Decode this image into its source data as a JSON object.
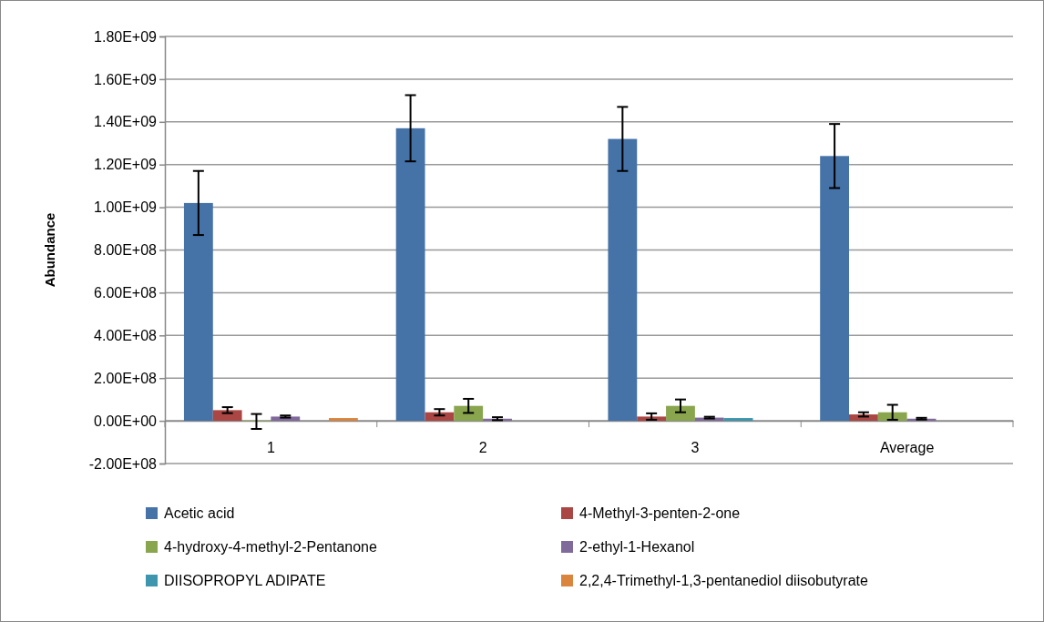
{
  "chart_data": {
    "type": "bar",
    "ylabel": "Abundance",
    "categories": [
      "1",
      "2",
      "3",
      "Average"
    ],
    "series": [
      {
        "name": "Acetic acid",
        "color": "#4572a7",
        "values": [
          1020000000,
          1370000000,
          1320000000,
          1240000000
        ],
        "errors": [
          150000000,
          155000000,
          150000000,
          150000000
        ]
      },
      {
        "name": "4-Methyl-3-penten-2-one",
        "color": "#aa4643",
        "values": [
          50000000,
          40000000,
          20000000,
          30000000
        ],
        "errors": [
          14000000,
          15000000,
          15000000,
          10000000
        ]
      },
      {
        "name": "4-hydroxy-4-methyl-2-Pentanone",
        "color": "#89a54e",
        "values": [
          -3000000,
          70000000,
          70000000,
          40000000
        ],
        "errors": [
          35000000,
          33000000,
          30000000,
          35000000
        ]
      },
      {
        "name": "2-ethyl-1-Hexanol",
        "color": "#80699b",
        "values": [
          20000000,
          10000000,
          15000000,
          10000000
        ],
        "errors": [
          5000000,
          7000000,
          4000000,
          4000000
        ]
      },
      {
        "name": "DIISOPROPYL ADIPATE",
        "color": "#3d96ae",
        "values": [
          0,
          0,
          13000000,
          0
        ],
        "errors": [
          null,
          null,
          null,
          null
        ]
      },
      {
        "name": "2,2,4-Trimethyl-1,3-pentanediol diisobutyrate",
        "color": "#db843d",
        "values": [
          13000000,
          0,
          0,
          0
        ],
        "errors": [
          null,
          null,
          null,
          null
        ]
      }
    ],
    "ylim": [
      -200000000,
      1800000000
    ],
    "yticks": [
      {
        "value": -200000000,
        "label": "-2.00E+08"
      },
      {
        "value": 0,
        "label": "0.00E+00"
      },
      {
        "value": 200000000,
        "label": "2.00E+08"
      },
      {
        "value": 400000000,
        "label": "4.00E+08"
      },
      {
        "value": 600000000,
        "label": "6.00E+08"
      },
      {
        "value": 800000000,
        "label": "8.00E+08"
      },
      {
        "value": 1000000000,
        "label": "1.00E+09"
      },
      {
        "value": 1200000000,
        "label": "1.20E+09"
      },
      {
        "value": 1400000000,
        "label": "1.40E+09"
      },
      {
        "value": 1600000000,
        "label": "1.60E+09"
      },
      {
        "value": 1800000000,
        "label": "1.80E+09"
      }
    ],
    "grid": "y",
    "legend": "bottom"
  }
}
